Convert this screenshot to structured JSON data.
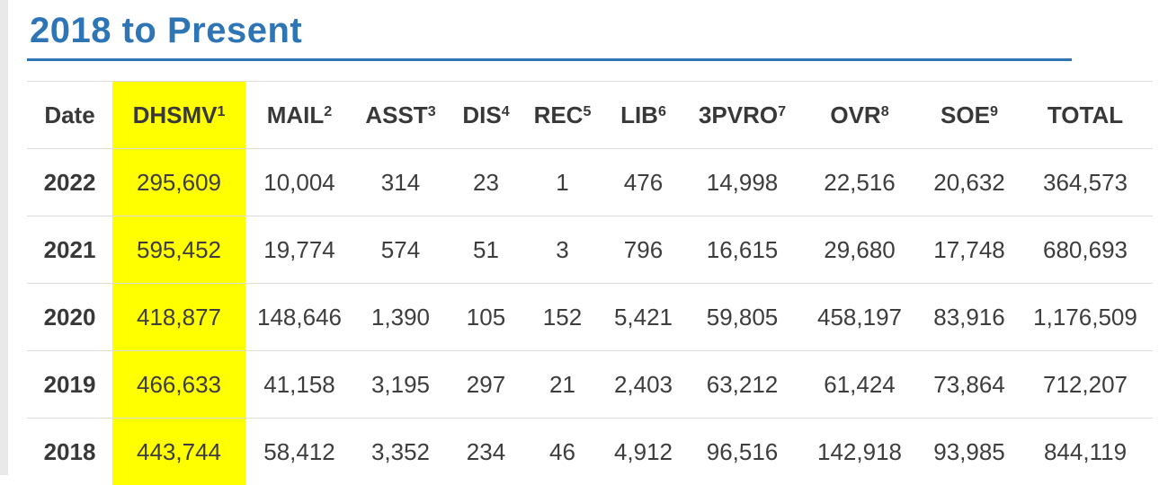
{
  "page": {
    "title": "2018 to Present"
  },
  "colors": {
    "title_blue": "#2e75b6",
    "highlight_yellow": "#ffff00",
    "row_border_gray": "#dcdcdc",
    "text_dark": "#3d3d3d"
  },
  "table": {
    "columns": [
      {
        "label": "Date",
        "sup": "",
        "highlight": false
      },
      {
        "label": "DHSMV",
        "sup": "1",
        "highlight": true
      },
      {
        "label": "MAIL",
        "sup": "2",
        "highlight": false
      },
      {
        "label": "ASST",
        "sup": "3",
        "highlight": false
      },
      {
        "label": "DIS",
        "sup": "4",
        "highlight": false
      },
      {
        "label": "REC",
        "sup": "5",
        "highlight": false
      },
      {
        "label": "LIB",
        "sup": "6",
        "highlight": false
      },
      {
        "label": "3PVRO",
        "sup": "7",
        "highlight": false
      },
      {
        "label": "OVR",
        "sup": "8",
        "highlight": false
      },
      {
        "label": "SOE",
        "sup": "9",
        "highlight": false
      },
      {
        "label": "TOTAL",
        "sup": "",
        "highlight": false
      }
    ],
    "rows": [
      {
        "date": "2022",
        "values": [
          "295,609",
          "10,004",
          "314",
          "23",
          "1",
          "476",
          "14,998",
          "22,516",
          "20,632",
          "364,573"
        ]
      },
      {
        "date": "2021",
        "values": [
          "595,452",
          "19,774",
          "574",
          "51",
          "3",
          "796",
          "16,615",
          "29,680",
          "17,748",
          "680,693"
        ]
      },
      {
        "date": "2020",
        "values": [
          "418,877",
          "148,646",
          "1,390",
          "105",
          "152",
          "5,421",
          "59,805",
          "458,197",
          "83,916",
          "1,176,509"
        ]
      },
      {
        "date": "2019",
        "values": [
          "466,633",
          "41,158",
          "3,195",
          "297",
          "21",
          "2,403",
          "63,212",
          "61,424",
          "73,864",
          "712,207"
        ]
      },
      {
        "date": "2018",
        "values": [
          "443,744",
          "58,412",
          "3,352",
          "234",
          "46",
          "4,912",
          "96,516",
          "142,918",
          "93,985",
          "844,119"
        ]
      }
    ]
  }
}
